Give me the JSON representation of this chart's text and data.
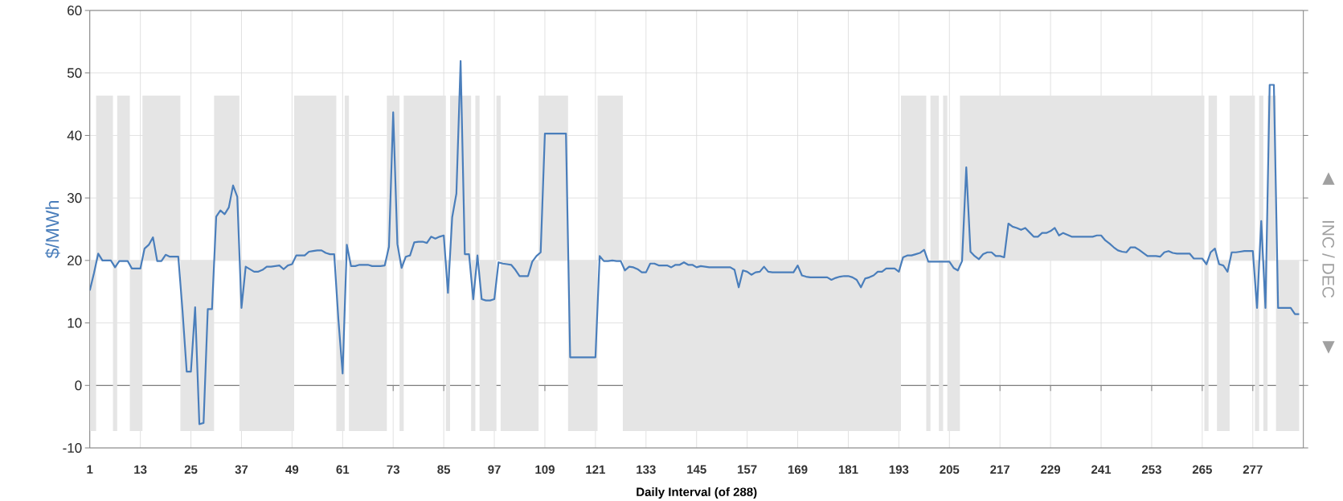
{
  "chart_data": {
    "type": "line",
    "xlabel": "Daily Interval (of 288)",
    "ylabel": "$/MWh",
    "y2label": "INC / DEC",
    "annotations": [
      "▲",
      "▼"
    ],
    "ylim": [
      -10,
      60
    ],
    "yticks": [
      -10,
      0,
      10,
      20,
      30,
      40,
      50,
      60
    ],
    "grid": true,
    "categories": [
      "1",
      null,
      null,
      null,
      null,
      null,
      null,
      null,
      null,
      null,
      null,
      null,
      "13",
      null,
      null,
      null,
      null,
      null,
      null,
      null,
      null,
      null,
      null,
      null,
      "25",
      null,
      null,
      null,
      null,
      null,
      null,
      null,
      null,
      null,
      null,
      null,
      "37",
      null,
      null,
      null,
      null,
      null,
      null,
      null,
      null,
      null,
      null,
      null,
      "49",
      null,
      null,
      null,
      null,
      null,
      null,
      null,
      null,
      null,
      null,
      null,
      "61",
      null,
      null,
      null,
      null,
      null,
      null,
      null,
      null,
      null,
      null,
      null,
      "73",
      null,
      null,
      null,
      null,
      null,
      null,
      null,
      null,
      null,
      null,
      null,
      "85",
      null,
      null,
      null,
      null,
      null,
      null,
      null,
      null,
      null,
      null,
      null,
      "97",
      null,
      null,
      null,
      null,
      null,
      null,
      null,
      null,
      null,
      null,
      null,
      "109",
      null,
      null,
      null,
      null,
      null,
      null,
      null,
      null,
      null,
      null,
      null,
      "121",
      null,
      null,
      null,
      null,
      null,
      null,
      null,
      null,
      null,
      null,
      null,
      "133",
      null,
      null,
      null,
      null,
      null,
      null,
      null,
      null,
      null,
      null,
      null,
      "145",
      null,
      null,
      null,
      null,
      null,
      null,
      null,
      null,
      null,
      null,
      null,
      "157",
      null,
      null,
      null,
      null,
      null,
      null,
      null,
      null,
      null,
      null,
      null,
      "169",
      null,
      null,
      null,
      null,
      null,
      null,
      null,
      null,
      null,
      null,
      null,
      "181",
      null,
      null,
      null,
      null,
      null,
      null,
      null,
      null,
      null,
      null,
      null,
      "193",
      null,
      null,
      null,
      null,
      null,
      null,
      null,
      null,
      null,
      null,
      null,
      "205",
      null,
      null,
      null,
      null,
      null,
      null,
      null,
      null,
      null,
      null,
      null,
      "217",
      null,
      null,
      null,
      null,
      null,
      null,
      null,
      null,
      null,
      null,
      null,
      "229",
      null,
      null,
      null,
      null,
      null,
      null,
      null,
      null,
      null,
      null,
      null,
      "241",
      null,
      null,
      null,
      null,
      null,
      null,
      null,
      null,
      null,
      null,
      null,
      "253",
      null,
      null,
      null,
      null,
      null,
      null,
      null,
      null,
      null,
      null,
      null,
      "265",
      null,
      null,
      null,
      null,
      null,
      null,
      null,
      null,
      null,
      null,
      null,
      "277",
      null,
      null,
      null,
      null,
      null,
      null,
      null,
      null,
      null,
      null,
      null
    ],
    "series": [
      {
        "color": "#4a7ebb",
        "values": [
          15.2,
          18,
          21.1,
          20,
          20,
          20,
          18.9,
          19.9,
          19.9,
          19.9,
          18.7,
          18.7,
          18.7,
          21.9,
          22.5,
          23.7,
          19.9,
          19.9,
          20.9,
          20.6,
          20.6,
          20.6,
          12,
          2.2,
          2.2,
          12.5,
          -6.2,
          -6,
          12.2,
          12.2,
          27,
          28,
          27.4,
          28.5,
          32,
          30.2,
          12.4,
          19,
          18.6,
          18.2,
          18.2,
          18.5,
          19,
          19,
          19.1,
          19.2,
          18.6,
          19.2,
          19.4,
          20.8,
          20.8,
          20.8,
          21.4,
          21.5,
          21.6,
          21.6,
          21.2,
          21,
          21,
          10.5,
          1.9,
          22.5,
          19.1,
          19.1,
          19.3,
          19.3,
          19.3,
          19.1,
          19.1,
          19.1,
          19.2,
          22.2,
          43.7,
          22.6,
          18.8,
          20.6,
          20.8,
          22.9,
          23,
          23,
          22.8,
          23.8,
          23.5,
          23.8,
          24,
          14.8,
          26.9,
          30.7,
          51.9,
          21,
          21,
          13.8,
          20.8,
          13.8,
          13.6,
          13.6,
          13.8,
          19.7,
          19.5,
          19.4,
          19.3,
          18.5,
          17.5,
          17.5,
          17.5,
          19.8,
          20.7,
          21.3,
          40.3,
          40.3,
          40.3,
          40.3,
          40.3,
          40.3,
          4.5,
          4.5,
          4.5,
          4.5,
          4.5,
          4.5,
          4.5,
          20.7,
          19.9,
          19.9,
          20,
          19.9,
          19.9,
          18.4,
          19,
          18.9,
          18.6,
          18.1,
          18.1,
          19.5,
          19.5,
          19.2,
          19.2,
          19.2,
          18.9,
          19.3,
          19.3,
          19.7,
          19.3,
          19.3,
          18.9,
          19.1,
          19,
          18.9,
          18.9,
          18.9,
          18.9,
          18.9,
          18.9,
          18.5,
          15.7,
          18.4,
          18.2,
          17.7,
          18.1,
          18.2,
          19,
          18.2,
          18.1,
          18.1,
          18.1,
          18.1,
          18.1,
          18.1,
          19.2,
          17.6,
          17.4,
          17.3,
          17.3,
          17.3,
          17.3,
          17.3,
          16.9,
          17.2,
          17.4,
          17.5,
          17.5,
          17.3,
          16.9,
          15.7,
          17.1,
          17.3,
          17.6,
          18.2,
          18.2,
          18.7,
          18.7,
          18.7,
          18.2,
          20.5,
          20.8,
          20.8,
          21,
          21.2,
          21.7,
          19.8,
          19.8,
          19.8,
          19.8,
          19.8,
          19.8,
          18.8,
          18.4,
          19.9,
          34.9,
          21.4,
          20.7,
          20.2,
          21,
          21.3,
          21.3,
          20.7,
          20.7,
          20.5,
          25.9,
          25.4,
          25.2,
          24.9,
          25.2,
          24.5,
          23.8,
          23.8,
          24.4,
          24.4,
          24.7,
          25.2,
          24,
          24.4,
          24.1,
          23.8,
          23.8,
          23.8,
          23.8,
          23.8,
          23.8,
          24,
          24,
          23.2,
          22.7,
          22.1,
          21.6,
          21.4,
          21.3,
          22.1,
          22.1,
          21.7,
          21.2,
          20.7,
          20.7,
          20.7,
          20.6,
          21.3,
          21.5,
          21.2,
          21.1,
          21.1,
          21.1,
          21.1,
          20.3,
          20.3,
          20.3,
          19.4,
          21.3,
          21.9,
          19.4,
          19.2,
          18.2,
          21.3,
          21.3,
          21.4,
          21.5,
          21.5,
          21.5,
          12.4,
          26.3,
          12.4,
          48.1,
          48.1,
          12.4,
          12.4,
          12.4,
          12.4,
          11.4,
          11.4
        ],
        "lower": [
          -7.3,
          -7.3,
          20,
          20,
          20,
          20,
          -7.3,
          20,
          20,
          20,
          -7.3,
          -7.3,
          -7.3,
          20,
          20,
          20,
          20,
          20,
          20,
          20,
          20,
          20,
          -7.3,
          -7.3,
          -7.3,
          -7.3,
          -7.3,
          -7.3,
          -7.3,
          -7.3,
          20,
          20,
          20,
          20,
          20,
          20,
          -7.3,
          -7.3,
          -7.3,
          -7.3,
          -7.3,
          -7.3,
          -7.3,
          -7.3,
          -7.3,
          -7.3,
          -7.3,
          -7.3,
          -7.3,
          20,
          20,
          20,
          20,
          20,
          20,
          20,
          20,
          20,
          20,
          -7.3,
          -7.3,
          20,
          -7.3,
          -7.3,
          -7.3,
          -7.3,
          -7.3,
          -7.3,
          -7.3,
          -7.3,
          -7.3,
          20,
          20,
          20,
          -7.3,
          20,
          20,
          20,
          20,
          20,
          20,
          20,
          20,
          20,
          20,
          -7.3,
          20,
          20,
          20,
          20,
          20,
          -7.3,
          20,
          -7.3,
          -7.3,
          -7.3,
          -7.3,
          20,
          -7.3,
          -7.3,
          -7.3,
          -7.3,
          -7.3,
          -7.3,
          -7.3,
          -7.3,
          -7.3,
          20,
          20,
          20,
          20,
          20,
          20,
          20,
          -7.3,
          -7.3,
          -7.3,
          -7.3,
          -7.3,
          -7.3,
          -7.3,
          20,
          20,
          20,
          20,
          20,
          20,
          -7.3,
          -7.3,
          -7.3,
          -7.3,
          -7.3,
          -7.3,
          -7.3,
          -7.3,
          -7.3,
          -7.3,
          -7.3,
          -7.3,
          -7.3,
          -7.3,
          -7.3,
          -7.3,
          -7.3,
          -7.3,
          -7.3,
          -7.3,
          -7.3,
          -7.3,
          -7.3,
          -7.3,
          -7.3,
          -7.3,
          -7.3,
          -7.3,
          -7.3,
          -7.3,
          -7.3,
          -7.3,
          -7.3,
          -7.3,
          -7.3,
          -7.3,
          -7.3,
          -7.3,
          -7.3,
          -7.3,
          -7.3,
          -7.3,
          -7.3,
          -7.3,
          -7.3,
          -7.3,
          -7.3,
          -7.3,
          -7.3,
          -7.3,
          -7.3,
          -7.3,
          -7.3,
          -7.3,
          -7.3,
          -7.3,
          -7.3,
          -7.3,
          -7.3,
          -7.3,
          -7.3,
          -7.3,
          -7.3,
          -7.3,
          -7.3,
          -7.3,
          20,
          20,
          20,
          20,
          20,
          20,
          -7.3,
          20,
          20,
          -7.3,
          20,
          -7.3,
          -7.3,
          -7.3,
          20,
          20,
          20,
          20,
          20,
          20,
          20,
          20,
          20,
          20,
          20,
          20,
          20,
          20,
          20,
          20,
          20,
          20,
          20,
          20,
          20,
          20,
          20,
          20,
          20,
          20,
          20,
          20,
          20,
          20,
          20,
          20,
          20,
          20,
          20,
          20,
          20,
          20,
          20,
          20,
          20,
          20,
          20,
          20,
          20,
          20,
          20,
          20,
          20,
          20,
          20,
          20,
          20,
          20,
          20,
          20,
          20,
          20,
          -7.3,
          20,
          20,
          -7.3,
          -7.3,
          -7.3,
          20,
          20,
          20,
          20,
          20,
          20,
          -7.3,
          20,
          -7.3,
          20,
          20,
          -7.3,
          -7.3,
          -7.3,
          -7.3,
          -7.3,
          -7.3
        ],
        "upper": [
          20,
          20,
          46.4,
          46.4,
          46.4,
          46.4,
          20,
          46.4,
          46.4,
          46.4,
          20,
          20,
          20,
          46.4,
          46.4,
          46.4,
          46.4,
          46.4,
          46.4,
          46.4,
          46.4,
          46.4,
          20,
          20,
          20,
          20,
          20,
          20,
          20,
          20,
          46.4,
          46.4,
          46.4,
          46.4,
          46.4,
          46.4,
          20,
          20,
          20,
          20,
          20,
          20,
          20,
          20,
          20,
          20,
          20,
          20,
          20,
          46.4,
          46.4,
          46.4,
          46.4,
          46.4,
          46.4,
          46.4,
          46.4,
          46.4,
          46.4,
          20,
          20,
          46.4,
          20,
          20,
          20,
          20,
          20,
          20,
          20,
          20,
          20,
          46.4,
          46.4,
          46.4,
          20,
          46.4,
          46.4,
          46.4,
          46.4,
          46.4,
          46.4,
          46.4,
          46.4,
          46.4,
          46.4,
          20,
          46.4,
          46.4,
          46.4,
          46.4,
          46.4,
          20,
          46.4,
          20,
          20,
          20,
          20,
          46.4,
          20,
          20,
          20,
          20,
          20,
          20,
          20,
          20,
          20,
          46.4,
          46.4,
          46.4,
          46.4,
          46.4,
          46.4,
          46.4,
          20,
          20,
          20,
          20,
          20,
          20,
          20,
          46.4,
          46.4,
          46.4,
          46.4,
          46.4,
          46.4,
          20,
          20,
          20,
          20,
          20,
          20,
          20,
          20,
          20,
          20,
          20,
          20,
          20,
          20,
          20,
          20,
          20,
          20,
          20,
          20,
          20,
          20,
          20,
          20,
          20,
          20,
          20,
          20,
          20,
          20,
          20,
          20,
          20,
          20,
          20,
          20,
          20,
          20,
          20,
          20,
          20,
          20,
          20,
          20,
          20,
          20,
          20,
          20,
          20,
          20,
          20,
          20,
          20,
          20,
          20,
          20,
          20,
          20,
          20,
          20,
          20,
          20,
          20,
          20,
          20,
          20,
          46.4,
          46.4,
          46.4,
          46.4,
          46.4,
          46.4,
          20,
          46.4,
          46.4,
          20,
          46.4,
          20,
          20,
          20,
          46.4,
          46.4,
          46.4,
          46.4,
          46.4,
          46.4,
          46.4,
          46.4,
          46.4,
          46.4,
          46.4,
          46.4,
          46.4,
          46.4,
          46.4,
          46.4,
          46.4,
          46.4,
          46.4,
          46.4,
          46.4,
          46.4,
          46.4,
          46.4,
          46.4,
          46.4,
          46.4,
          46.4,
          46.4,
          46.4,
          46.4,
          46.4,
          46.4,
          46.4,
          46.4,
          46.4,
          46.4,
          46.4,
          46.4,
          46.4,
          46.4,
          46.4,
          46.4,
          46.4,
          46.4,
          46.4,
          46.4,
          46.4,
          46.4,
          46.4,
          46.4,
          46.4,
          46.4,
          46.4,
          46.4,
          46.4,
          46.4,
          46.4,
          20,
          46.4,
          46.4,
          20,
          20,
          20,
          46.4,
          46.4,
          46.4,
          46.4,
          46.4,
          46.4,
          20,
          46.4,
          20,
          46.4,
          46.4,
          20,
          20,
          20,
          20,
          20,
          20
        ]
      }
    ]
  }
}
